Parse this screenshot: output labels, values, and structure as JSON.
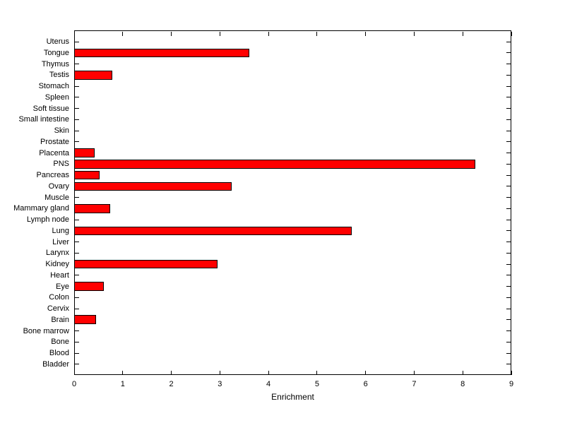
{
  "chart_data": {
    "type": "bar",
    "orientation": "horizontal",
    "title": "",
    "xlabel": "Enrichment",
    "ylabel": "",
    "xlim": [
      0,
      9
    ],
    "xticks": [
      0,
      1,
      2,
      3,
      4,
      5,
      6,
      7,
      8,
      9
    ],
    "grid": false,
    "categories": [
      "Uterus",
      "Tongue",
      "Thymus",
      "Testis",
      "Stomach",
      "Spleen",
      "Soft tissue",
      "Small intestine",
      "Skin",
      "Prostate",
      "Placenta",
      "PNS",
      "Pancreas",
      "Ovary",
      "Muscle",
      "Mammary gland",
      "Lymph node",
      "Lung",
      "Liver",
      "Larynx",
      "Kidney",
      "Heart",
      "Eye",
      "Colon",
      "Cervix",
      "Brain",
      "Bone marrow",
      "Bone",
      "Blood",
      "Bladder"
    ],
    "values": [
      0,
      3.6,
      0,
      0.78,
      0,
      0,
      0,
      0,
      0,
      0,
      0.42,
      8.26,
      0.52,
      3.24,
      0,
      0.74,
      0,
      5.71,
      0,
      0,
      2.95,
      0,
      0.61,
      0,
      0,
      0.45,
      0,
      0,
      0,
      0
    ],
    "bar_color": "#FF0000",
    "bar_edge_color": "#000000",
    "axis_color": "#000000",
    "background_color": "#FFFFFF"
  }
}
